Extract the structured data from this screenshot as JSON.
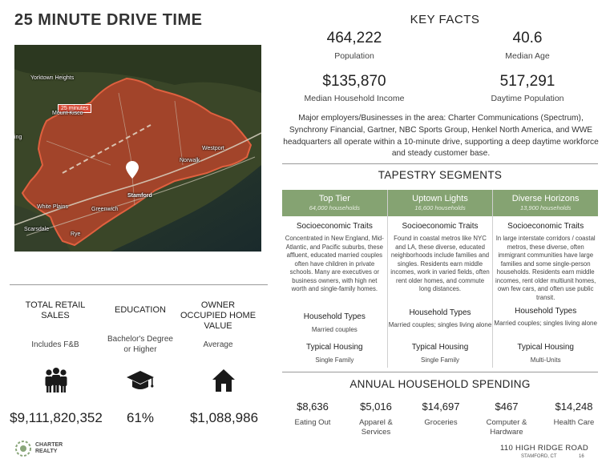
{
  "title": "25 MINUTE DRIVE TIME",
  "map": {
    "badge": "25 minutes",
    "places": [
      "Yorktown Heights",
      "Mount Kisco",
      "Westport",
      "Norwalk",
      "Stamford",
      "White Plains",
      "Greenwich",
      "Scarsdale",
      "Rye",
      "ing"
    ],
    "colors": {
      "drive_zone": "#c0442c",
      "land": "#2f3a22",
      "water": "#1d2b2d"
    }
  },
  "left_stats": [
    {
      "heading": "TOTAL RETAIL SALES",
      "sub": "Includes F&B",
      "icon": "people-group-icon",
      "value": "$9,111,820,352"
    },
    {
      "heading": "EDUCATION",
      "sub": "Bachelor's Degree or Higher",
      "icon": "graduation-cap-icon",
      "value": "61%"
    },
    {
      "heading": "OWNER OCCUPIED HOME VALUE",
      "sub": "Average",
      "icon": "house-icon",
      "value": "$1,088,986"
    }
  ],
  "key_facts": {
    "heading": "KEY FACTS",
    "items": [
      {
        "value": "464,222",
        "label": "Population"
      },
      {
        "value": "40.6",
        "label": "Median Age"
      },
      {
        "value": "$135,870",
        "label": "Median Household Income"
      },
      {
        "value": "517,291",
        "label": "Daytime Population"
      }
    ],
    "paragraph": "Major employers/Businesses in the area:  Charter Communications (Spectrum), Synchrony Financial, Gartner, NBC Sports Group, Henkel North America, and WWE headquarters all operate within a 10-minute drive, supporting a deep daytime workforce and steady customer base."
  },
  "tapestry": {
    "heading": "TAPESTRY SEGMENTS",
    "traits_label": "Socioeconomic Traits",
    "hh_types_label": "Household Types",
    "housing_label": "Typical Housing",
    "accent": "#85a372",
    "segments": [
      {
        "name": "Top Tier",
        "households": "64,000 households",
        "traits": "Concentrated in New England, Mid-Atlantic, and Pacific suburbs, these affluent, educated married couples often have children in private schools. Many are executives or business owners, with high net worth and single-family homes.",
        "hh_types": "Married couples",
        "housing": "Single Family"
      },
      {
        "name": "Uptown Lights",
        "households": "16,600 households",
        "traits": "Found in coastal metros like NYC and LA, these diverse, educated neighborhoods include families and singles. Residents earn middle incomes, work in varied fields, often rent older homes, and commute long distances.",
        "hh_types": "Married couples; singles living alone",
        "housing": "Single Family"
      },
      {
        "name": "Diverse Horizons",
        "households": "13,900 households",
        "traits": "In large interstate corridors / coastal metros, these diverse, often immigrant communities have large families and some single-person households. Residents earn middle incomes, rent older multiunit homes, own few cars, and often use public transit.",
        "hh_types": "Married couples; singles living alone",
        "housing": "Multi-Units"
      }
    ]
  },
  "spending": {
    "heading": "ANNUAL HOUSEHOLD SPENDING",
    "items": [
      {
        "value": "$8,636",
        "label": "Eating Out"
      },
      {
        "value": "$5,016",
        "label": "Apparel & Services"
      },
      {
        "value": "$14,697",
        "label": "Groceries"
      },
      {
        "value": "$467",
        "label": "Computer & Hardware"
      },
      {
        "value": "$14,248",
        "label": "Health Care"
      }
    ]
  },
  "footer": {
    "logo_line1": "CHARTER",
    "logo_line2": "REALTY",
    "address": "110 HIGH RIDGE ROAD",
    "city": "STAMFORD, CT",
    "page": "16"
  }
}
